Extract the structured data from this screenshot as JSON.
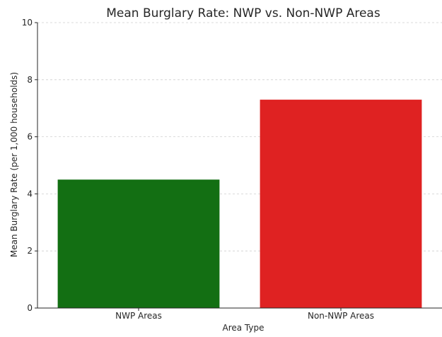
{
  "chart_data": {
    "type": "bar",
    "title": "Mean Burglary Rate: NWP vs. Non-NWP Areas",
    "xlabel": "Area Type",
    "ylabel": "Mean Burglary Rate (per 1,000 households)",
    "categories": [
      "NWP Areas",
      "Non-NWP Areas"
    ],
    "values": [
      4.5,
      7.3
    ],
    "colors": [
      "#136f13",
      "#df2222"
    ],
    "ylim": [
      0,
      10
    ],
    "yticks": [
      0,
      2,
      4,
      6,
      8,
      10
    ],
    "grid": "y-dashed",
    "legend": "none"
  }
}
